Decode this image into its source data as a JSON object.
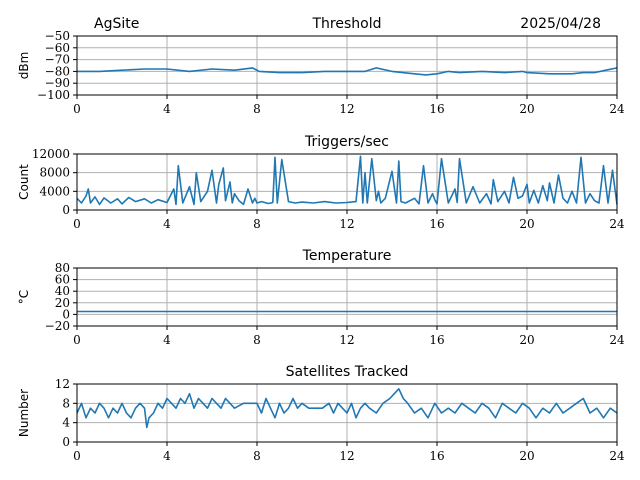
{
  "header": {
    "site": "AgSite",
    "date": "2025/04/28"
  },
  "colors": {
    "series": "#1f77b4",
    "grid": "#b0b0b0"
  },
  "chart_data": [
    {
      "type": "line",
      "title": "Threshold",
      "xlabel": "",
      "ylabel": "dBm",
      "xlim": [
        0,
        24
      ],
      "ylim": [
        -100,
        -50
      ],
      "xticks": [
        0,
        4,
        8,
        12,
        16,
        20,
        24
      ],
      "yticks": [
        -100,
        -90,
        -80,
        -70,
        -60,
        -50
      ],
      "ytick_labels": [
        "−100",
        "−90",
        "−80",
        "−70",
        "−60",
        "−50"
      ],
      "grid": true,
      "series": [
        {
          "x": [
            0,
            1,
            2,
            3,
            4,
            5,
            6,
            7,
            7.8,
            8.1,
            9,
            10,
            11,
            12,
            12.8,
            13.3,
            14,
            15,
            15.5,
            16,
            16.5,
            17,
            18,
            19,
            19.8,
            20,
            21,
            22,
            22.5,
            23,
            23.5,
            24
          ],
          "y": [
            -80,
            -80,
            -79,
            -78,
            -78,
            -80,
            -78,
            -79,
            -77,
            -80,
            -81,
            -81,
            -80,
            -80,
            -80,
            -77,
            -80,
            -82,
            -83,
            -82,
            -80,
            -81,
            -80,
            -81,
            -80,
            -81,
            -82,
            -82,
            -81,
            -81,
            -79,
            -77
          ]
        }
      ]
    },
    {
      "type": "line",
      "title": "Triggers/sec",
      "xlabel": "",
      "ylabel": "Count",
      "xlim": [
        0,
        24
      ],
      "ylim": [
        0,
        12000
      ],
      "xticks": [
        0,
        4,
        8,
        12,
        16,
        20,
        24
      ],
      "yticks": [
        0,
        4000,
        8000,
        12000
      ],
      "ytick_labels": [
        "0",
        "4000",
        "8000",
        "12000"
      ],
      "grid": true,
      "series": [
        {
          "x": [
            0,
            0.2,
            0.4,
            0.5,
            0.6,
            0.8,
            1.0,
            1.2,
            1.5,
            1.8,
            2.0,
            2.3,
            2.6,
            3.0,
            3.3,
            3.6,
            4.0,
            4.3,
            4.4,
            4.5,
            4.7,
            5.0,
            5.2,
            5.3,
            5.5,
            5.8,
            6.0,
            6.2,
            6.3,
            6.5,
            6.6,
            6.8,
            6.9,
            7.0,
            7.2,
            7.4,
            7.6,
            7.8,
            7.9,
            8.0,
            8.2,
            8.5,
            8.7,
            8.8,
            8.9,
            9.1,
            9.4,
            9.7,
            10,
            10.5,
            11,
            11.5,
            12,
            12.4,
            12.6,
            12.7,
            12.8,
            12.9,
            13.1,
            13.3,
            13.4,
            13.5,
            13.7,
            14.0,
            14.2,
            14.3,
            14.4,
            14.6,
            15.0,
            15.2,
            15.4,
            15.6,
            15.8,
            15.9,
            16.0,
            16.2,
            16.5,
            16.8,
            16.9,
            17.0,
            17.3,
            17.6,
            17.9,
            18.2,
            18.4,
            18.5,
            18.7,
            19.0,
            19.2,
            19.4,
            19.6,
            19.8,
            20.0,
            20.1,
            20.3,
            20.5,
            20.7,
            20.9,
            21.0,
            21.2,
            21.4,
            21.6,
            21.8,
            22.0,
            22.2,
            22.4,
            22.6,
            22.8,
            23.0,
            23.2,
            23.4,
            23.6,
            23.8,
            24
          ],
          "y": [
            2500,
            1500,
            3000,
            4500,
            1500,
            2800,
            1200,
            2600,
            1500,
            2400,
            1300,
            2700,
            1800,
            2400,
            1500,
            2200,
            1600,
            4500,
            1200,
            9500,
            1500,
            5000,
            1200,
            8000,
            1800,
            4000,
            8500,
            1500,
            5500,
            9000,
            2000,
            6000,
            1500,
            3500,
            2000,
            1200,
            4500,
            1500,
            2500,
            1500,
            1800,
            1400,
            1600,
            11300,
            1500,
            10800,
            1800,
            1500,
            1700,
            1500,
            1800,
            1500,
            1600,
            1800,
            11500,
            1500,
            8000,
            1500,
            11000,
            2000,
            4000,
            1500,
            2500,
            8300,
            1500,
            10500,
            1800,
            1500,
            2500,
            1300,
            9500,
            1500,
            3500,
            2200,
            1300,
            11000,
            1500,
            4500,
            1600,
            11000,
            1500,
            5000,
            1500,
            3500,
            1300,
            6500,
            1800,
            4000,
            1500,
            7000,
            2500,
            3000,
            5500,
            1500,
            4200,
            1500,
            5200,
            2000,
            5800,
            1500,
            7500,
            2500,
            1500,
            4000,
            1500,
            11300,
            1500,
            3500,
            2000,
            1500,
            9500,
            1500,
            8500,
            1200
          ]
        }
      ]
    },
    {
      "type": "line",
      "title": "Temperature",
      "xlabel": "",
      "ylabel": "°C",
      "xlim": [
        0,
        24
      ],
      "ylim": [
        -20,
        80
      ],
      "xticks": [
        0,
        4,
        8,
        12,
        16,
        20,
        24
      ],
      "yticks": [
        -20,
        0,
        20,
        40,
        60,
        80
      ],
      "ytick_labels": [
        "−20",
        "0",
        "20",
        "40",
        "60",
        "80"
      ],
      "grid": true,
      "series": [
        {
          "x": [
            0,
            24
          ],
          "y": [
            5,
            5
          ]
        }
      ]
    },
    {
      "type": "line",
      "title": "Satellites Tracked",
      "xlabel": "",
      "ylabel": "Number",
      "xlim": [
        0,
        24
      ],
      "ylim": [
        0,
        12
      ],
      "xticks": [
        0,
        4,
        8,
        12,
        16,
        20,
        24
      ],
      "yticks": [
        0,
        4,
        8,
        12
      ],
      "ytick_labels": [
        "0",
        "4",
        "8",
        "12"
      ],
      "grid": true,
      "series": [
        {
          "x": [
            0,
            0.2,
            0.4,
            0.6,
            0.8,
            1.0,
            1.2,
            1.4,
            1.6,
            1.8,
            2.0,
            2.2,
            2.4,
            2.6,
            2.8,
            3.0,
            3.1,
            3.2,
            3.4,
            3.6,
            3.8,
            4.0,
            4.2,
            4.4,
            4.6,
            4.8,
            5.0,
            5.2,
            5.4,
            5.6,
            5.8,
            6.0,
            6.2,
            6.4,
            6.6,
            6.8,
            7.0,
            7.4,
            7.8,
            8.0,
            8.2,
            8.4,
            8.6,
            8.8,
            9.0,
            9.2,
            9.4,
            9.6,
            9.8,
            10.0,
            10.3,
            10.6,
            10.9,
            11.2,
            11.4,
            11.6,
            11.8,
            12.0,
            12.2,
            12.4,
            12.6,
            12.8,
            13.0,
            13.3,
            13.6,
            13.9,
            14.1,
            14.3,
            14.5,
            14.7,
            15.0,
            15.3,
            15.6,
            15.9,
            16.2,
            16.5,
            16.8,
            17.1,
            17.4,
            17.7,
            18.0,
            18.3,
            18.6,
            18.9,
            19.2,
            19.5,
            19.8,
            20.1,
            20.4,
            20.7,
            21.0,
            21.3,
            21.6,
            21.9,
            22.2,
            22.5,
            22.8,
            23.1,
            23.4,
            23.7,
            24
          ],
          "y": [
            6,
            8,
            5,
            7,
            6,
            8,
            7,
            5,
            7,
            6,
            8,
            6,
            5,
            7,
            8,
            7,
            3,
            5,
            6,
            8,
            7,
            9,
            8,
            7,
            9,
            8,
            10,
            7,
            9,
            8,
            7,
            9,
            8,
            7,
            9,
            8,
            7,
            8,
            8,
            8,
            6,
            9,
            7,
            5,
            8,
            6,
            7,
            9,
            7,
            8,
            7,
            7,
            7,
            8,
            6,
            8,
            7,
            6,
            8,
            5,
            7,
            8,
            7,
            6,
            8,
            9,
            10,
            11,
            9,
            8,
            6,
            7,
            5,
            8,
            6,
            7,
            6,
            8,
            7,
            6,
            8,
            7,
            5,
            8,
            7,
            6,
            8,
            7,
            5,
            7,
            6,
            8,
            6,
            7,
            8,
            9,
            6,
            7,
            5,
            7,
            6
          ]
        }
      ]
    }
  ]
}
